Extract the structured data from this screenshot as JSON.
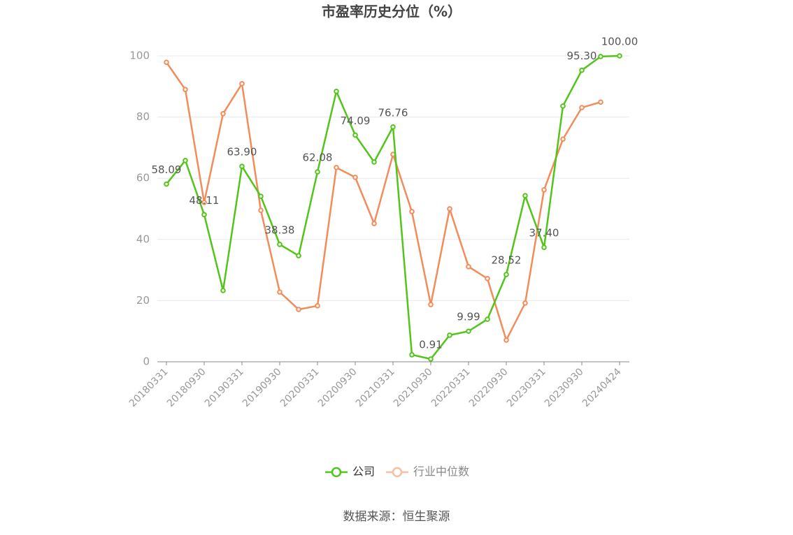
{
  "chart_data": {
    "type": "line",
    "title": "市盈率历史分位（%）",
    "categories": [
      "20180331",
      null,
      "20180930",
      null,
      "20190331",
      null,
      "20190930",
      null,
      "20200331",
      null,
      "20200930",
      null,
      "20210331",
      null,
      "20210930",
      null,
      "20220331",
      null,
      "20220930",
      null,
      "20230331",
      null,
      "20230930",
      null,
      "20240424"
    ],
    "series": [
      {
        "name": "公司",
        "color": "#52c41a",
        "values": [
          58.09,
          65.8,
          48.11,
          23.3,
          63.9,
          54.1,
          38.38,
          34.7,
          62.08,
          88.4,
          74.09,
          65.3,
          76.76,
          2.3,
          0.91,
          8.7,
          9.99,
          13.9,
          28.52,
          54.3,
          37.4,
          83.6,
          95.3,
          99.8,
          100.0
        ],
        "value_labels": [
          "58.09",
          null,
          "48.11",
          null,
          "63.90",
          null,
          "38.38",
          null,
          "62.08",
          null,
          "74.09",
          null,
          "76.76",
          null,
          "0.91",
          null,
          "9.99",
          null,
          "28.52",
          null,
          "37.40",
          null,
          "95.30",
          null,
          "100.00"
        ]
      },
      {
        "name": "行业中位数",
        "color": "#f28c5a",
        "values": [
          97.9,
          89.0,
          52.1,
          81.1,
          90.9,
          49.5,
          22.8,
          17.1,
          18.3,
          63.5,
          60.3,
          45.2,
          67.8,
          49.1,
          18.7,
          50.0,
          31.1,
          27.2,
          7.1,
          19.2,
          56.2,
          72.8,
          83.1,
          84.9,
          null
        ]
      }
    ],
    "ylim": [
      0,
      100
    ],
    "yticks": [
      0,
      20,
      40,
      60,
      80,
      100
    ],
    "grid": true,
    "legend": "bottom",
    "source": "数据来源：恒生聚源"
  }
}
